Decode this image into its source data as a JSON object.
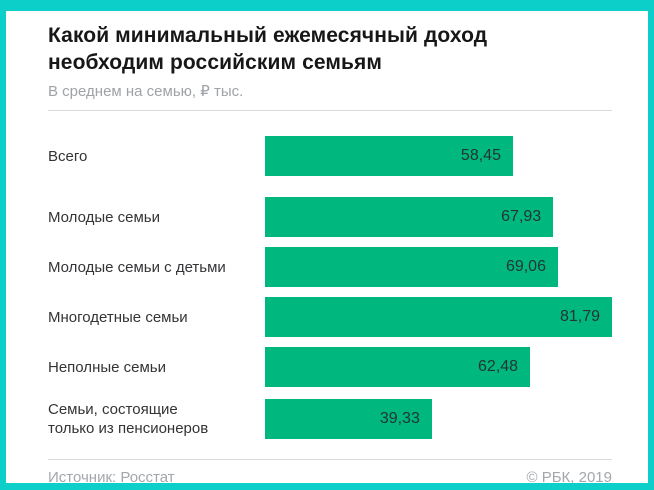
{
  "frame": {
    "border_color": "#0bcfc8",
    "background": "#ffffff"
  },
  "header": {
    "title_lines": [
      "Какой минимальный ежемесячный доход",
      "необходим российским семьям"
    ],
    "subtitle": "В среднем на семью, ₽ тыс."
  },
  "chart_data": {
    "type": "bar",
    "orientation": "horizontal",
    "title": "Какой минимальный ежемесячный доход необходим российским семьям",
    "subtitle": "В среднем на семью, ₽ тыс.",
    "categories": [
      "Всего",
      "Молодые семьи",
      "Молодые семьи с детьми",
      "Многодетные семьи",
      "Неполные семьи",
      "Семьи, состоящие только из пенсионеров"
    ],
    "category_display": [
      "Всего",
      "Молодые семьи",
      "Молодые семьи с детьми",
      "Многодетные семьи",
      "Неполные семьи",
      "Семьи, состоящие\nтолько из пенсионеров"
    ],
    "values": [
      58.45,
      67.93,
      69.06,
      81.79,
      62.48,
      39.33
    ],
    "value_labels": [
      "58,45",
      "67,93",
      "69,06",
      "81,79",
      "62,48",
      "39,33"
    ],
    "xlim": [
      0,
      81.79
    ],
    "bar_color": "#00b87e",
    "value_text_color": "#22362f",
    "grid": false,
    "legend": "none"
  },
  "footer": {
    "source": "Источник: Росстат",
    "copyright": "© РБК, 2019"
  }
}
